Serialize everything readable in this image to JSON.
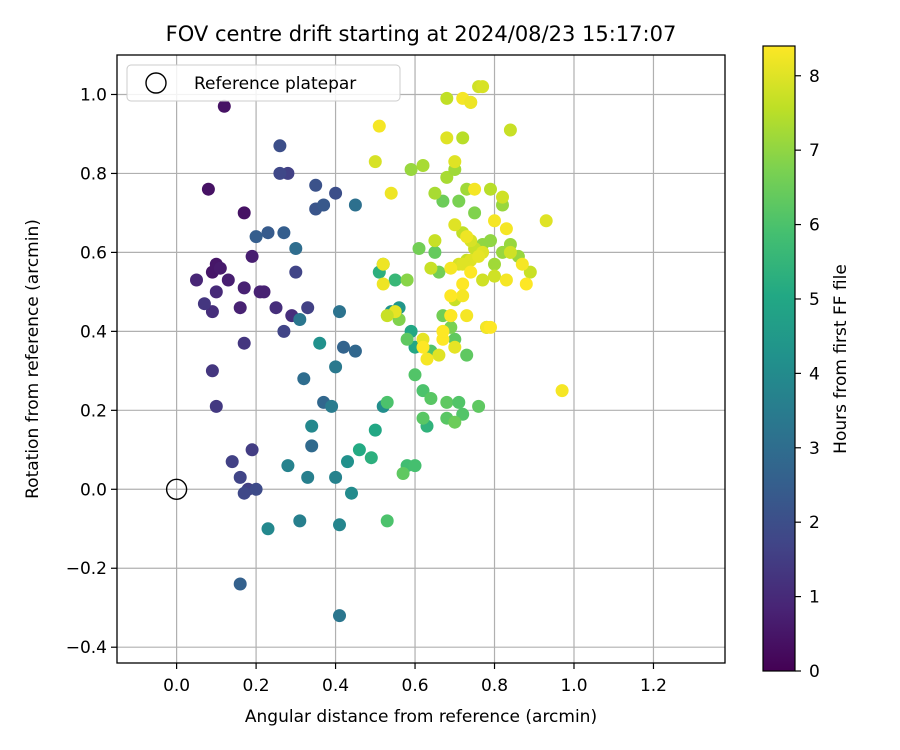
{
  "chart_data": {
    "type": "scatter",
    "title": "FOV centre drift starting at 2024/08/23 15:17:07",
    "xlabel": "Angular distance from reference (arcmin)",
    "ylabel": "Rotation from reference (arcmin)",
    "xlim": [
      -0.15,
      1.38
    ],
    "ylim": [
      -0.44,
      1.1
    ],
    "xticks": [
      0.0,
      0.2,
      0.4,
      0.6,
      0.8,
      1.0,
      1.2
    ],
    "xtick_labels": [
      "0.0",
      "0.2",
      "0.4",
      "0.6",
      "0.8",
      "1.0",
      "1.2"
    ],
    "yticks": [
      -0.4,
      -0.2,
      0.0,
      0.2,
      0.4,
      0.6,
      0.8,
      1.0
    ],
    "ytick_labels": [
      "−0.4",
      "−0.2",
      "0.0",
      "0.2",
      "0.4",
      "0.6",
      "0.8",
      "1.0"
    ],
    "grid": true,
    "legend": {
      "placement": "top-left",
      "entries": [
        "Reference platepar"
      ]
    },
    "reference_point": {
      "x": 0.0,
      "y": 0.0,
      "label": "Reference platepar"
    },
    "colorbar": {
      "label": "Hours from first FF file",
      "colormap": "viridis",
      "range": [
        0,
        8.4
      ],
      "ticks": [
        0,
        1,
        2,
        3,
        4,
        5,
        6,
        7,
        8
      ],
      "tick_labels": [
        "0",
        "1",
        "2",
        "3",
        "4",
        "5",
        "6",
        "7",
        "8"
      ]
    },
    "series": [
      {
        "x": [
          0.12,
          0.08,
          0.17,
          0.1,
          0.09,
          0.11,
          0.13,
          0.19,
          0.22,
          0.21,
          0.17,
          0.16,
          0.05,
          0.1,
          0.09,
          0.25,
          0.29,
          0.07,
          0.17,
          0.28,
          0.33,
          0.3,
          0.27,
          0.26,
          0.26,
          0.4,
          0.35,
          0.09,
          0.1,
          0.19,
          0.14,
          0.18,
          0.16,
          0.17,
          0.2,
          0.35,
          0.37,
          0.23,
          0.27,
          0.2,
          0.16,
          0.42,
          0.45,
          0.37,
          0.34,
          0.32,
          0.3,
          0.45,
          0.41,
          0.31,
          0.4,
          0.39,
          0.33,
          0.28,
          0.41,
          0.34,
          0.52,
          0.23,
          0.4,
          0.31,
          0.41,
          0.44,
          0.43,
          0.36,
          0.54,
          0.56,
          0.5,
          0.46,
          0.49,
          0.51,
          0.52,
          0.55,
          0.59,
          0.6,
          0.58,
          0.6,
          0.63,
          0.62,
          0.64,
          0.6,
          0.53,
          0.53,
          0.57,
          0.58,
          0.62,
          0.64,
          0.68,
          0.7,
          0.73,
          0.68,
          0.72,
          0.71,
          0.76,
          0.7,
          0.69,
          0.67,
          0.78,
          0.65,
          0.67,
          0.61,
          0.66,
          0.71,
          0.75,
          0.76,
          0.77,
          0.79,
          0.82,
          0.86,
          0.82,
          0.84,
          0.8,
          0.73,
          0.68,
          0.7,
          0.56,
          0.58,
          0.59,
          0.62,
          0.65,
          0.72,
          0.79,
          0.89,
          0.74,
          0.72,
          0.68,
          0.65,
          0.64,
          0.7,
          0.73,
          0.75,
          0.77,
          0.8,
          0.84,
          0.76,
          0.77,
          0.84,
          0.82,
          0.74,
          0.71,
          0.77,
          0.74,
          0.72,
          0.66,
          0.69,
          0.7,
          0.62,
          0.55,
          0.52,
          0.52,
          0.54,
          0.51,
          0.72,
          0.75,
          0.8,
          0.83,
          0.87,
          0.93,
          0.74,
          0.72,
          0.69,
          0.72,
          0.78,
          0.83,
          0.88,
          0.79,
          0.73,
          0.69,
          0.63,
          0.67,
          0.69,
          0.62,
          0.67,
          0.97,
          0.73,
          0.76,
          0.7,
          0.68,
          0.7,
          0.74,
          0.5,
          0.53
        ],
        "y": [
          0.97,
          0.76,
          0.7,
          0.57,
          0.55,
          0.56,
          0.53,
          0.59,
          0.5,
          0.5,
          0.51,
          0.46,
          0.53,
          0.5,
          0.45,
          0.46,
          0.44,
          0.47,
          0.37,
          0.8,
          0.46,
          0.55,
          0.4,
          0.8,
          0.87,
          0.75,
          0.77,
          0.3,
          0.21,
          0.1,
          0.07,
          0.0,
          0.03,
          -0.01,
          0.0,
          0.71,
          0.72,
          0.65,
          0.65,
          0.64,
          -0.24,
          0.36,
          0.35,
          0.22,
          0.11,
          0.28,
          0.61,
          0.72,
          0.45,
          0.43,
          0.31,
          0.21,
          0.03,
          0.06,
          -0.09,
          0.16,
          0.21,
          -0.1,
          0.03,
          -0.08,
          -0.32,
          -0.01,
          0.07,
          0.37,
          0.45,
          0.46,
          0.15,
          0.1,
          0.08,
          0.55,
          0.57,
          0.53,
          0.4,
          0.36,
          0.06,
          0.06,
          0.16,
          0.25,
          0.35,
          0.29,
          0.22,
          -0.08,
          0.04,
          0.38,
          0.18,
          0.23,
          0.22,
          0.38,
          0.34,
          0.18,
          0.19,
          0.22,
          0.21,
          0.17,
          0.41,
          0.44,
          0.41,
          0.6,
          0.73,
          0.61,
          0.55,
          0.73,
          0.7,
          0.6,
          0.62,
          0.63,
          0.72,
          0.59,
          0.6,
          0.62,
          0.57,
          0.76,
          0.79,
          0.81,
          0.43,
          0.53,
          0.81,
          0.82,
          0.75,
          0.89,
          0.76,
          0.55,
          0.98,
          0.65,
          0.99,
          0.63,
          0.56,
          0.48,
          0.58,
          0.61,
          0.53,
          0.54,
          0.6,
          1.02,
          1.02,
          0.91,
          0.74,
          0.63,
          0.57,
          0.6,
          0.58,
          0.57,
          0.34,
          0.44,
          0.36,
          0.38,
          0.45,
          0.52,
          0.57,
          0.75,
          0.92,
          0.99,
          0.76,
          0.68,
          0.66,
          0.57,
          0.68,
          0.55,
          0.52,
          0.44,
          0.49,
          0.41,
          0.53,
          0.52,
          0.41,
          0.44,
          0.56,
          0.33,
          0.38,
          0.49,
          0.36,
          0.4,
          0.25,
          0.64,
          0.59,
          0.67,
          0.89,
          0.83,
          0.98,
          0.83,
          0.44
        ],
        "hours": [
          0.4,
          0.4,
          0.4,
          0.5,
          0.5,
          0.6,
          0.7,
          0.7,
          0.8,
          0.8,
          0.8,
          0.8,
          0.9,
          1.0,
          1.1,
          1.1,
          1.1,
          1.3,
          1.3,
          1.6,
          1.6,
          1.7,
          1.7,
          1.8,
          2.0,
          2.0,
          2.1,
          1.3,
          1.4,
          1.5,
          1.6,
          1.6,
          1.7,
          1.8,
          1.9,
          2.2,
          2.3,
          2.4,
          2.5,
          2.5,
          2.6,
          2.7,
          2.8,
          2.8,
          2.9,
          3.0,
          3.0,
          3.1,
          3.2,
          3.3,
          3.4,
          3.5,
          3.6,
          3.7,
          3.8,
          3.9,
          4.1,
          3.9,
          3.7,
          3.6,
          3.3,
          4.0,
          4.2,
          4.2,
          4.3,
          4.4,
          5.0,
          5.1,
          5.3,
          5.3,
          5.5,
          5.6,
          5.0,
          5.0,
          5.8,
          5.9,
          5.4,
          6.0,
          6.1,
          6.1,
          6.0,
          6.0,
          6.3,
          6.3,
          6.2,
          6.2,
          6.3,
          6.3,
          6.3,
          6.2,
          6.1,
          6.1,
          6.3,
          6.5,
          6.7,
          6.6,
          6.5,
          6.4,
          6.5,
          6.6,
          6.6,
          6.7,
          6.8,
          6.8,
          7.0,
          7.0,
          7.1,
          7.1,
          7.1,
          7.1,
          7.2,
          7.2,
          7.3,
          7.2,
          6.8,
          6.9,
          7.1,
          7.3,
          7.3,
          7.5,
          7.5,
          7.7,
          7.5,
          7.6,
          7.6,
          7.7,
          7.7,
          7.7,
          7.7,
          7.7,
          7.8,
          7.8,
          7.8,
          7.8,
          7.9,
          7.7,
          7.8,
          7.9,
          7.9,
          8.0,
          8.0,
          8.0,
          8.0,
          8.1,
          8.1,
          8.1,
          8.1,
          8.2,
          8.2,
          8.2,
          8.3,
          8.3,
          8.3,
          8.3,
          8.3,
          8.3,
          8.0,
          8.4,
          8.4,
          8.4,
          8.3,
          8.3,
          8.3,
          8.4,
          8.4,
          8.3,
          8.3,
          8.3,
          8.4,
          8.4,
          8.4,
          8.4,
          8.3,
          8.2,
          8.1,
          8.0,
          8.0,
          8.0,
          8.2,
          7.9,
          7.7
        ]
      }
    ]
  }
}
